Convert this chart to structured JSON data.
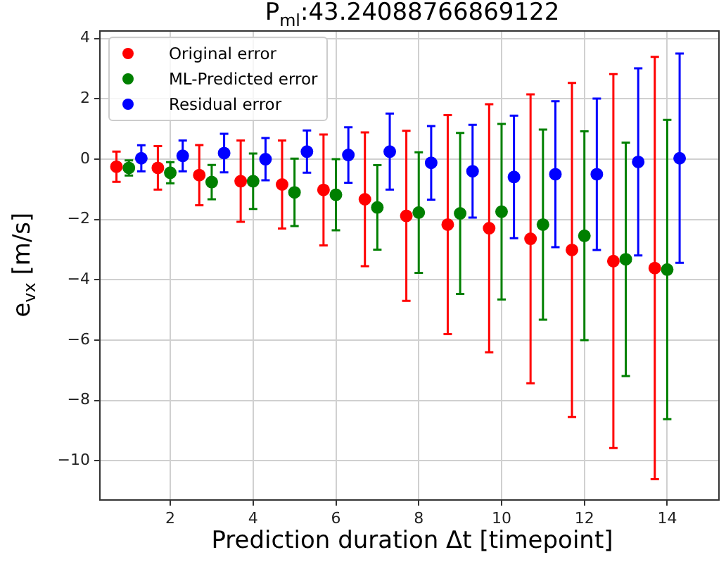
{
  "chart_data": {
    "type": "scatter",
    "title": "P$_{ml}$:43.24088766869122",
    "xlabel": "Prediction duration Δt [timepoint]",
    "ylabel": "e$_{vx}$ [m/s]",
    "xlim": [
      0.3,
      15.25
    ],
    "xticks": [
      2,
      4,
      6,
      8,
      10,
      12,
      14
    ],
    "ylim": [
      -11.3,
      4.25
    ],
    "yticks": [
      4,
      2,
      0,
      -2,
      -4,
      -6,
      -8,
      -10
    ],
    "grid": true,
    "legend": "top left",
    "marker": "circle",
    "series": [
      {
        "name": "Original error",
        "color": "#ff0000",
        "x": [
          0.7,
          1.7,
          2.7,
          3.7,
          4.7,
          5.7,
          6.7,
          7.7,
          8.7,
          9.7,
          10.7,
          11.7,
          12.7,
          13.7
        ],
        "values": [
          -0.25,
          -0.29,
          -0.53,
          -0.73,
          -0.84,
          -1.02,
          -1.33,
          -1.88,
          -2.17,
          -2.29,
          -2.64,
          -3.01,
          -3.38,
          -3.61
        ],
        "errors": [
          0.5,
          0.72,
          1.0,
          1.35,
          1.46,
          1.84,
          2.22,
          2.82,
          3.63,
          4.11,
          4.79,
          5.54,
          6.2,
          7.0
        ]
      },
      {
        "name": "ML-Predicted error",
        "color": "#008000",
        "x": [
          1,
          2,
          3,
          4,
          5,
          6,
          7,
          8,
          9,
          10,
          11,
          12,
          13,
          14
        ],
        "values": [
          -0.29,
          -0.45,
          -0.76,
          -0.73,
          -1.1,
          -1.18,
          -1.6,
          -1.77,
          -1.8,
          -1.74,
          -2.17,
          -2.54,
          -3.32,
          -3.66
        ],
        "errors": [
          0.25,
          0.35,
          0.57,
          0.92,
          1.12,
          1.18,
          1.4,
          2.0,
          2.67,
          2.91,
          3.15,
          3.46,
          3.87,
          4.96
        ]
      },
      {
        "name": "Residual error",
        "color": "#0000ff",
        "x": [
          1.3,
          2.3,
          3.3,
          4.3,
          5.3,
          6.3,
          7.3,
          8.3,
          9.3,
          10.3,
          11.3,
          12.3,
          13.3,
          14.3
        ],
        "values": [
          0.03,
          0.11,
          0.2,
          0.0,
          0.25,
          0.14,
          0.25,
          -0.12,
          -0.4,
          -0.59,
          -0.5,
          -0.5,
          -0.09,
          0.03
        ],
        "errors": [
          0.43,
          0.51,
          0.64,
          0.7,
          0.7,
          0.92,
          1.26,
          1.22,
          1.54,
          2.03,
          2.42,
          2.51,
          3.1,
          3.47
        ]
      }
    ]
  }
}
